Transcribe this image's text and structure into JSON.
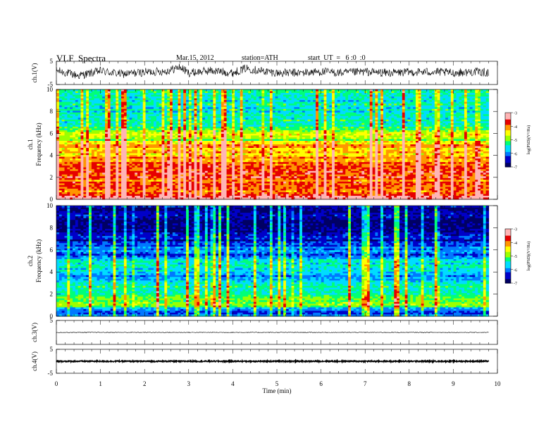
{
  "header": {
    "title": "VLF  Spectra",
    "date": "Mar.15, 2012",
    "station": "station=ATH",
    "start": "start  UT  =   6 :0  :0"
  },
  "colors": {
    "colormap": [
      "#000064",
      "#0000c8",
      "#0078ff",
      "#00dcff",
      "#00ff78",
      "#9bff00",
      "#ffff00",
      "#ff9600",
      "#e60000",
      "#ffb4b4",
      "#ffffff"
    ],
    "trace": "#000000"
  },
  "chart_data": [
    {
      "type": "line",
      "panel": "ch1-waveform",
      "ylabel": "ch.1(V)",
      "ylim": [
        -5,
        5
      ],
      "yticks": [
        "5",
        "-5"
      ],
      "x_range_min": [
        0,
        9.8
      ],
      "trace_envelope": {
        "x": [
          0,
          0.5,
          1.0,
          1.5,
          2.0,
          2.5,
          2.8,
          3.0,
          3.5,
          4.0,
          4.3,
          4.6,
          5.0,
          5.5,
          6.0,
          6.5,
          7.0,
          7.5,
          8.0,
          8.5,
          9.0,
          9.5,
          9.8
        ],
        "y": [
          1.0,
          -1.2,
          0.8,
          -0.5,
          0.3,
          0.8,
          2.5,
          0.0,
          1.0,
          0.0,
          2.0,
          1.0,
          0.0,
          0.0,
          0.5,
          0.0,
          0.5,
          0.0,
          0.3,
          0.5,
          0.0,
          0.5,
          0.0
        ],
        "amplitude_v": 1.8
      }
    },
    {
      "type": "heatmap",
      "panel": "ch1-spectrogram",
      "ylabel_top": "ch.1",
      "ylabel": "Frequency  (kHz)",
      "ylim": [
        0,
        10
      ],
      "yticks": [
        "0",
        "2",
        "4",
        "6",
        "8",
        "10"
      ],
      "colorbar": {
        "label": "log(PSD)(V²/Hz)",
        "range": [
          -7,
          -3
        ],
        "ticks": [
          "-3",
          "-4",
          "-5",
          "-6",
          "-7"
        ]
      },
      "freq_band_log_psd": {
        "freq_khz": [
          0.0,
          0.5,
          1.0,
          1.5,
          2.0,
          2.5,
          3.0,
          3.5,
          4.0,
          4.5,
          5.0,
          5.5,
          6.0,
          6.5,
          7.0,
          7.5,
          8.0,
          8.5,
          9.0,
          9.5,
          10.0
        ],
        "log_psd": [
          -3.4,
          -3.7,
          -3.9,
          -3.9,
          -3.8,
          -3.8,
          -3.8,
          -4.0,
          -4.2,
          -4.3,
          -4.1,
          -5.0,
          -4.6,
          -5.3,
          -5.5,
          -5.4,
          -5.5,
          -5.4,
          -5.6,
          -5.4,
          -5.5
        ]
      }
    },
    {
      "type": "heatmap",
      "panel": "ch2-spectrogram",
      "ylabel_top": "ch.2",
      "ylabel": "Frequency  (kHz)",
      "ylim": [
        0,
        10
      ],
      "yticks": [
        "0",
        "2",
        "4",
        "6",
        "8",
        "10"
      ],
      "colorbar": {
        "label": "log(PSD)(V²/Hz)",
        "range": [
          -7,
          -3
        ],
        "ticks": [
          "-3",
          "-4",
          "-5",
          "-6",
          "-7"
        ]
      },
      "freq_band_log_psd": {
        "freq_khz": [
          0.0,
          0.5,
          1.0,
          1.5,
          2.0,
          2.5,
          3.0,
          3.5,
          4.0,
          4.5,
          5.0,
          5.5,
          6.0,
          6.5,
          7.0,
          7.5,
          8.0,
          8.5,
          9.0,
          9.5,
          10.0
        ],
        "log_psd": [
          -6.0,
          -6.2,
          -5.0,
          -5.1,
          -5.3,
          -5.3,
          -5.5,
          -6.0,
          -5.4,
          -5.5,
          -5.6,
          -6.2,
          -5.8,
          -6.3,
          -6.5,
          -6.5,
          -6.6,
          -6.6,
          -6.6,
          -6.6,
          -6.6
        ]
      }
    },
    {
      "type": "line",
      "panel": "ch3-waveform",
      "ylabel": "ch.3(V)",
      "ylim": [
        -5,
        5
      ],
      "yticks": [
        "5"
      ],
      "trace_envelope": {
        "x": [
          0,
          9.8
        ],
        "y": [
          0,
          0
        ],
        "amplitude_v": 0.15
      }
    },
    {
      "type": "line",
      "panel": "ch4-waveform",
      "ylabel": "ch.4(V)",
      "ylim": [
        -5,
        5
      ],
      "yticks": [
        "5",
        "-5"
      ],
      "trace_envelope": {
        "x": [
          0,
          9.8
        ],
        "y": [
          0,
          0
        ],
        "amplitude_v": 0.25
      }
    }
  ],
  "x_axis": {
    "label": "Time  (min)",
    "xlim": [
      0,
      10
    ],
    "ticks": [
      "0",
      "1",
      "2",
      "3",
      "4",
      "5",
      "6",
      "7",
      "8",
      "9",
      "10"
    ]
  }
}
